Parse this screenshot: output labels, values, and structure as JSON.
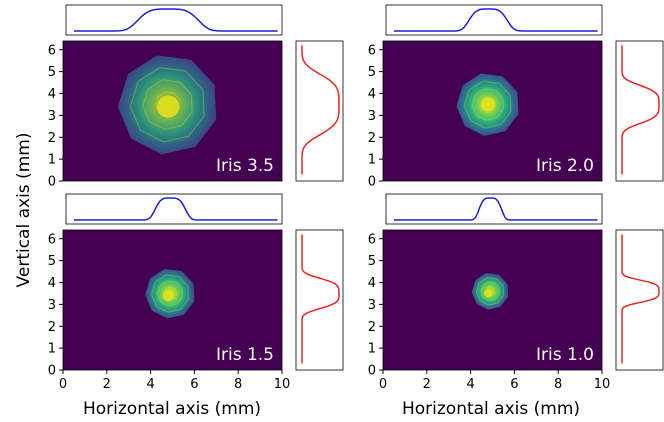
{
  "chart_data": {
    "type": "heatmap",
    "xlabel": "Horizontal axis (mm)",
    "ylabel": "Vertical axis (mm)",
    "xlim": [
      0,
      10
    ],
    "ylim": [
      0,
      6.4
    ],
    "xticks": [
      "0",
      "2",
      "4",
      "6",
      "8",
      "10"
    ],
    "yticks": [
      "0",
      "1",
      "2",
      "3",
      "4",
      "5",
      "6"
    ],
    "colors": {
      "background": "#440154",
      "horizontal_profile": "#1f1fd6",
      "vertical_profile": "#e8271f"
    },
    "panels": [
      {
        "label": "Iris 3.5",
        "center_x": 4.8,
        "center_y": 3.5,
        "radius_x": 2.3,
        "radius_y": 2.3,
        "peak_x": 4.8,
        "peak_y": 3.4
      },
      {
        "label": "Iris 2.0",
        "center_x": 4.8,
        "center_y": 3.5,
        "radius_x": 1.45,
        "radius_y": 1.45,
        "peak_x": 4.8,
        "peak_y": 3.5
      },
      {
        "label": "Iris 1.5",
        "center_x": 4.9,
        "center_y": 3.5,
        "radius_x": 1.15,
        "radius_y": 1.15,
        "peak_x": 4.8,
        "peak_y": 3.4
      },
      {
        "label": "Iris 1.0",
        "center_x": 4.9,
        "center_y": 3.6,
        "radius_x": 0.85,
        "radius_y": 0.85,
        "peak_x": 4.8,
        "peak_y": 3.5
      }
    ]
  }
}
